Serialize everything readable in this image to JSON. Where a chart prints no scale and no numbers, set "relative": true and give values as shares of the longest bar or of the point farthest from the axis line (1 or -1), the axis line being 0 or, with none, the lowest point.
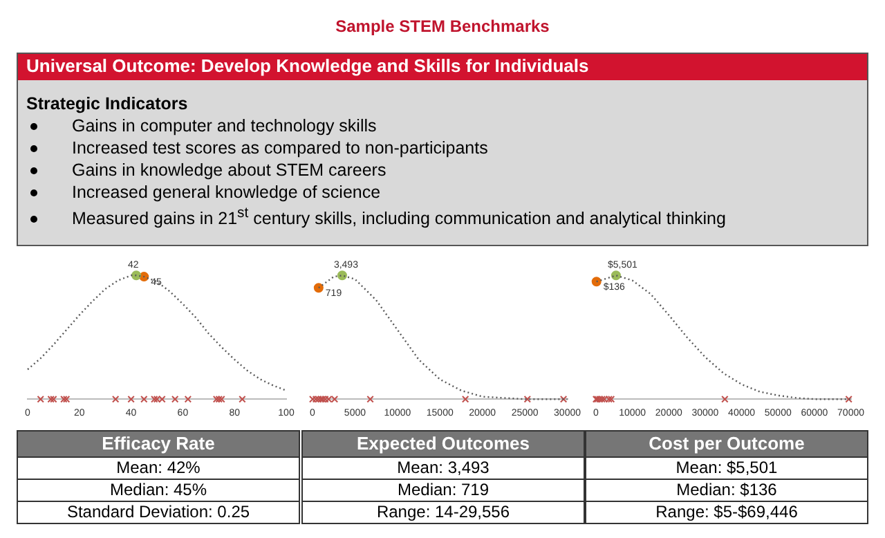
{
  "chart_data": [
    {
      "type": "other",
      "title": "Sample STEM Benchmarks",
      "subtitle": "Universal Outcome: Develop Knowledge and Skills for Individuals",
      "annotations": [
        "Strategic Indicators",
        "Gains in computer and technology skills",
        "Increased test scores as compared to non-participants",
        "Gains in knowledge about STEM careers",
        "Increased general knowledge of science",
        "Measured gains in 21$^{st}$ century skills, including communication and analytical thinking"
      ]
    },
    {
      "type": "line",
      "relative": true,
      "xlim": [
        0,
        100
      ],
      "xticks": [
        0,
        20,
        40,
        60,
        80,
        100
      ],
      "xlabel": "Efficacy Rate",
      "annotations": [
        "Mean: 42%",
        "Median: 45%",
        "Standard Deviation: 0.25",
        {
          "text": "42",
          "x": 42,
          "y": 1.0
        },
        {
          "text": "45",
          "x": 45,
          "y": 0.99
        }
      ],
      "series": [
        {
          "type": "line",
          "color": "#595959",
          "line_style": "dotted",
          "marker": "none",
          "x": [
            0,
            5,
            10,
            15,
            20,
            25,
            30,
            35,
            40,
            42,
            45,
            50,
            55,
            60,
            65,
            70,
            75,
            80,
            85,
            90,
            95,
            100
          ],
          "values": [
            0.24,
            0.33,
            0.44,
            0.56,
            0.68,
            0.79,
            0.89,
            0.96,
            1.0,
            1.0,
            0.99,
            0.95,
            0.87,
            0.77,
            0.66,
            0.53,
            0.42,
            0.32,
            0.23,
            0.16,
            0.11,
            0.07
          ]
        },
        {
          "type": "scatter",
          "color": "#9bbb59",
          "marker": "circle",
          "x": [
            42
          ],
          "values": [
            1.0
          ]
        },
        {
          "type": "scatter",
          "color": "#e36c09",
          "marker": "circle",
          "x": [
            45
          ],
          "values": [
            0.99
          ]
        },
        {
          "type": "scatter",
          "color": "#c0504d",
          "marker": "cross",
          "x": [
            5,
            9,
            10,
            14,
            15,
            34,
            40,
            45,
            49,
            50,
            52,
            57,
            62,
            73,
            74,
            75,
            83
          ],
          "values": [
            0,
            0,
            0,
            0,
            0,
            0,
            0,
            0,
            0,
            0,
            0,
            0,
            0,
            0,
            0,
            0,
            0
          ]
        }
      ]
    },
    {
      "type": "line",
      "relative": true,
      "xlim": [
        0,
        30000
      ],
      "xticks": [
        0,
        5000,
        10000,
        15000,
        20000,
        25000,
        30000
      ],
      "xlabel": "Expected Outcomes",
      "annotations": [
        "Mean: 3,493",
        "Median: 719",
        "Range: 14-29,556",
        {
          "text": "3,493",
          "x": 3493,
          "y": 1.0
        },
        {
          "text": "719",
          "x": 719,
          "y": 0.9
        }
      ],
      "series": [
        {
          "type": "line",
          "color": "#595959",
          "line_style": "dotted",
          "marker": "none",
          "x": [
            719,
            2500,
            3493,
            5000,
            7500,
            10000,
            12500,
            15000,
            17500,
            20000,
            22500,
            25000,
            27500,
            30000
          ],
          "values": [
            0.9,
            0.99,
            1.0,
            0.97,
            0.8,
            0.56,
            0.32,
            0.16,
            0.07,
            0.02,
            0.01,
            0.0,
            0.0,
            0.0
          ]
        },
        {
          "type": "scatter",
          "color": "#9bbb59",
          "marker": "circle",
          "x": [
            3493
          ],
          "values": [
            1.0
          ]
        },
        {
          "type": "scatter",
          "color": "#e36c09",
          "marker": "circle",
          "x": [
            719
          ],
          "values": [
            0.9
          ]
        },
        {
          "type": "scatter",
          "color": "#c0504d",
          "marker": "cross",
          "x": [
            14,
            400,
            700,
            1000,
            1200,
            1500,
            1900,
            2600,
            6800,
            18000,
            25300,
            29556
          ],
          "values": [
            0,
            0,
            0,
            0,
            0,
            0,
            0,
            0,
            0,
            0,
            0,
            0
          ]
        }
      ]
    },
    {
      "type": "line",
      "relative": true,
      "xlim": [
        0,
        70000
      ],
      "xticks": [
        0,
        10000,
        20000,
        30000,
        40000,
        50000,
        60000,
        70000
      ],
      "xlabel": "Cost per Outcome",
      "annotations": [
        "Mean: $5,501",
        "Median: $136",
        "Range: $5-$69,446",
        {
          "text": "$5,501",
          "x": 5501,
          "y": 1.0
        },
        {
          "text": "$136",
          "x": 136,
          "y": 0.95
        }
      ],
      "series": [
        {
          "type": "line",
          "color": "#595959",
          "line_style": "dotted",
          "marker": "none",
          "x": [
            136,
            5501,
            10000,
            15000,
            20000,
            25000,
            30000,
            35000,
            40000,
            45000,
            50000,
            55000,
            60000,
            65000,
            70000
          ],
          "values": [
            0.95,
            1.0,
            0.96,
            0.85,
            0.68,
            0.5,
            0.34,
            0.21,
            0.12,
            0.06,
            0.03,
            0.01,
            0.0,
            0.0,
            0.0
          ]
        },
        {
          "type": "scatter",
          "color": "#9bbb59",
          "marker": "circle",
          "x": [
            5501
          ],
          "values": [
            1.0
          ]
        },
        {
          "type": "scatter",
          "color": "#e36c09",
          "marker": "circle",
          "x": [
            136
          ],
          "values": [
            0.95
          ]
        },
        {
          "type": "scatter",
          "color": "#c0504d",
          "marker": "cross",
          "x": [
            5,
            400,
            1000,
            1650,
            2300,
            3560,
            4200,
            35400,
            69446
          ],
          "values": [
            0,
            0,
            0,
            0,
            0,
            0,
            0,
            0,
            0
          ]
        }
      ]
    }
  ]
}
